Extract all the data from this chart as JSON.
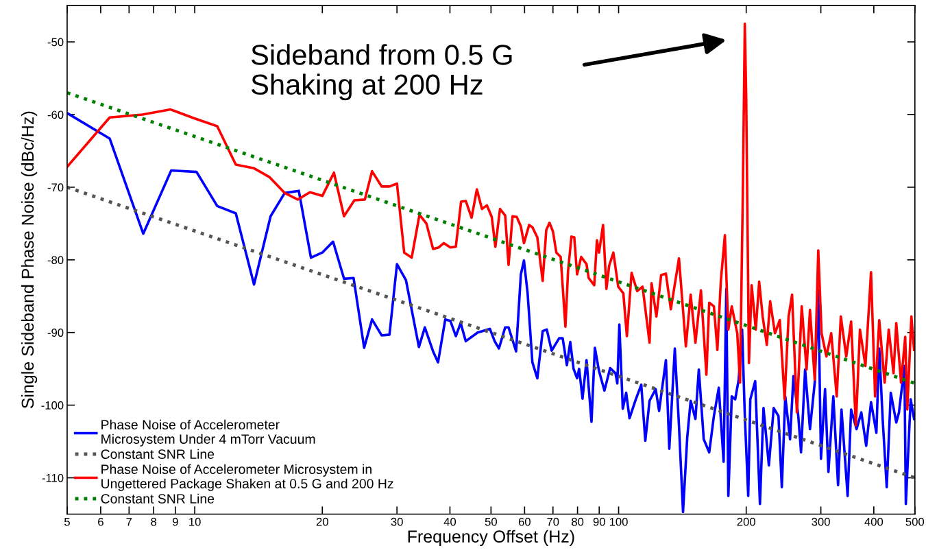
{
  "chart_data": {
    "type": "line",
    "xlabel": "Frequency Offset (Hz)",
    "ylabel": "Single Sideband Phase Noise (dBc/Hz)",
    "log": "x",
    "xlim": [
      5,
      500
    ],
    "xticks": [
      5,
      6,
      7,
      8,
      9,
      10,
      20,
      30,
      40,
      50,
      60,
      70,
      80,
      90,
      100,
      200,
      300,
      400,
      500
    ],
    "ylim": [
      -115,
      -45
    ],
    "yticks": [
      -110,
      -100,
      -90,
      -80,
      -70,
      -60,
      -50
    ],
    "grid": false,
    "legend": "bottom left",
    "marker": "none",
    "annotations": [
      "Sideband from 0.5 G\nShaking at 200 Hz"
    ],
    "series": [
      {
        "name": "Phase Noise of Accelerometer\nMicrosystem Under 4 mTorr Vacuum",
        "color": "#0000ff",
        "line_style": "solid",
        "x": [
          5,
          6.3,
          7.56,
          8.8,
          10.1,
          11.3,
          12.5,
          13.8,
          15.1,
          16.3,
          17.6,
          18.8,
          20.0,
          21.2,
          22.5,
          23.7,
          25.1,
          26.2,
          27.6,
          28.8,
          30.0,
          31.5,
          33.8,
          34.9,
          36.5,
          37.5,
          39.0,
          40.1,
          41.3,
          42.4,
          43.6,
          46.5,
          49.7,
          51.0,
          52.2,
          54.0,
          55.0,
          57.3,
          58.8,
          59.8,
          61.0,
          62.6,
          64.3,
          66.2,
          67.7,
          69.5,
          72.4,
          73.8,
          75.5,
          76.9,
          78.3,
          79.8,
          80.7,
          82.2,
          84.0,
          86.3,
          87.9,
          89.9,
          92.6,
          95.5,
          98.3,
          99.3,
          100.4,
          102.3,
          104.2,
          106.1,
          109.8,
          113.1,
          115.6,
          118.3,
          122.3,
          124.6,
          129.3,
          131.7,
          135.7,
          138.8,
          141.9,
          145.2,
          147.9,
          151.8,
          154.6,
          158.8,
          163.6,
          167.8,
          172.3,
          176.9,
          179.5,
          181.5,
          184.9,
          188.4,
          192.0,
          195.6,
          198.5,
          202.2,
          204.5,
          210.0,
          215.5,
          219.7,
          226.2,
          232.2,
          238.3,
          242.7,
          247.3,
          253.8,
          258.5,
          265.4,
          269.4,
          275.4,
          282.8,
          290.2,
          295.8,
          300.2,
          306.9,
          312.6,
          321.0,
          329.4,
          335.6,
          347.0,
          353.6,
          364.2,
          373.8,
          383.8,
          394.0,
          405.6,
          412.0,
          419.7,
          429.1,
          438.6,
          451.9,
          458.6,
          472.4,
          476.0,
          488.6,
          497.8
        ],
        "values": [
          -59.8,
          -63.3,
          -76.4,
          -67.7,
          -67.9,
          -72.6,
          -73.6,
          -83.4,
          -74.0,
          -70.8,
          -70.5,
          -79.7,
          -79.0,
          -77.5,
          -82.6,
          -82.5,
          -92.1,
          -88.2,
          -90.4,
          -90.3,
          -80.6,
          -82.8,
          -92.0,
          -89.3,
          -92.6,
          -94.1,
          -88.2,
          -88.4,
          -90.5,
          -88.7,
          -91.2,
          -90.0,
          -89.5,
          -91.2,
          -92.2,
          -89.3,
          -89.3,
          -92.6,
          -82.0,
          -80.1,
          -84.6,
          -94.1,
          -96.3,
          -89.8,
          -89.6,
          -92.5,
          -90.8,
          -90.8,
          -94.5,
          -91.3,
          -95.0,
          -96.3,
          -95.0,
          -99.1,
          -93.8,
          -102.3,
          -92.1,
          -95.3,
          -98.0,
          -94.9,
          -95.6,
          -97.0,
          -88.9,
          -100.5,
          -98.3,
          -101.8,
          -99.2,
          -97.2,
          -104.9,
          -99.4,
          -97.8,
          -100.8,
          -93.8,
          -106.0,
          -92.2,
          -102.8,
          -114.7,
          -104.4,
          -99.4,
          -101.9,
          -95.1,
          -104.7,
          -106.5,
          -101.5,
          -97.6,
          -107.8,
          -84.0,
          -112.5,
          -98.8,
          -99.2,
          -96.5,
          -89.6,
          -101.5,
          -112.5,
          -99.2,
          -96.7,
          -113.6,
          -100.4,
          -108.3,
          -100.4,
          -101.5,
          -111.3,
          -98.8,
          -104.7,
          -96.0,
          -101.5,
          -106.5,
          -95.1,
          -103.3,
          -96.9,
          -84.2,
          -107.4,
          -97.8,
          -109.2,
          -98.8,
          -111.0,
          -100.6,
          -112.5,
          -100.6,
          -103.3,
          -101.0,
          -105.6,
          -99.6,
          -103.8,
          -92.2,
          -101.9,
          -111.3,
          -98.3,
          -102.4,
          -101.0,
          -94.6,
          -113.6,
          -99.2,
          -101.9
        ]
      },
      {
        "name": "Constant SNR Line",
        "color": "#555555",
        "line_style": "dotted",
        "x": [
          5,
          500
        ],
        "values": [
          -70,
          -110
        ]
      },
      {
        "name": "Phase Noise of Accelerometer Microsystem in\nUngettered Package Shaken at 0.5 G and 200 Hz",
        "color": "#ff0000",
        "line_style": "solid",
        "x": [
          5,
          6.3,
          7.53,
          8.77,
          9.95,
          11.3,
          12.5,
          13.8,
          15.0,
          16.3,
          17.5,
          18.7,
          20.0,
          21.3,
          22.5,
          23.8,
          25.2,
          26.2,
          27.6,
          28.8,
          30.0,
          31.2,
          32.5,
          33.9,
          35.2,
          36.5,
          37.6,
          38.7,
          40.1,
          41.3,
          42.5,
          43.6,
          45.0,
          46.3,
          47.6,
          48.9,
          50.2,
          51.2,
          52.5,
          54.0,
          55.0,
          56.2,
          57.5,
          58.8,
          59.8,
          61.5,
          62.6,
          64.3,
          66.2,
          67.5,
          68.7,
          70.0,
          71.3,
          73.0,
          74.9,
          76.0,
          77.4,
          78.6,
          79.8,
          81.6,
          84.0,
          85.0,
          87.6,
          88.9,
          89.9,
          91.9,
          93.6,
          95.0,
          97.2,
          99.8,
          102.6,
          104.6,
          107.3,
          110.6,
          113.9,
          118.3,
          119.6,
          122.8,
          126.0,
          129.3,
          132.8,
          138.8,
          144.1,
          147.9,
          151.8,
          156.4,
          161.1,
          163.6,
          167.8,
          171.0,
          174.2,
          178.1,
          181.5,
          184.9,
          190.5,
          193.4,
          196.3,
          198.5,
          200,
          201.5,
          203.0,
          206.0,
          210.7,
          214.6,
          218.7,
          223.7,
          227.8,
          233.8,
          240.0,
          246.4,
          251.8,
          256.6,
          263.4,
          270.4,
          277.6,
          282.8,
          290.2,
          295.8,
          301.2,
          309.2,
          317.4,
          327.0,
          334.4,
          344.4,
          353.6,
          362.8,
          371.0,
          382.2,
          394.0,
          402.8,
          412.0,
          424.2,
          433.8,
          445.2,
          451.9,
          463.8,
          474.4,
          479.8,
          490.6,
          497.8
        ],
        "values": [
          -67.2,
          -60.4,
          -60.0,
          -59.3,
          -60.5,
          -61.6,
          -66.9,
          -67.4,
          -68.6,
          -70.8,
          -71.7,
          -70.7,
          -71.2,
          -68.0,
          -74.0,
          -71.8,
          -71.7,
          -67.8,
          -69.9,
          -69.9,
          -69.5,
          -79.0,
          -79.7,
          -73.8,
          -75.0,
          -78.5,
          -78.3,
          -77.7,
          -78.3,
          -78.2,
          -72.0,
          -71.9,
          -74.2,
          -70.3,
          -73.0,
          -72.5,
          -74.1,
          -78.2,
          -73.0,
          -73.9,
          -80.7,
          -74.0,
          -74.1,
          -75.4,
          -77.7,
          -75.2,
          -75.5,
          -76.9,
          -82.9,
          -75.9,
          -74.9,
          -76.1,
          -79.0,
          -79.6,
          -89.2,
          -81.5,
          -76.8,
          -76.9,
          -82.0,
          -79.6,
          -80.6,
          -82.5,
          -83.5,
          -77.3,
          -79.0,
          -75.2,
          -84.0,
          -80.8,
          -79.0,
          -83.7,
          -84.6,
          -90.5,
          -81.8,
          -84.3,
          -83.7,
          -91.4,
          -83.2,
          -87.8,
          -82.1,
          -81.9,
          -86.8,
          -79.8,
          -91.9,
          -84.8,
          -91.4,
          -84.2,
          -95.8,
          -85.9,
          -86.4,
          -92.4,
          -83.0,
          -76.6,
          -89.6,
          -86.4,
          -90.1,
          -96.9,
          -71.4,
          -47.5,
          -57.7,
          -75.9,
          -94.2,
          -83.5,
          -89.6,
          -83.0,
          -87.8,
          -91.7,
          -85.7,
          -90.1,
          -88.3,
          -99.2,
          -87.8,
          -84.8,
          -101.0,
          -86.4,
          -95.1,
          -86.9,
          -96.5,
          -78.7,
          -90.1,
          -93.3,
          -90.1,
          -98.8,
          -87.8,
          -93.3,
          -88.5,
          -102.8,
          -89.6,
          -94.6,
          -81.7,
          -98.8,
          -88.3,
          -96.9,
          -89.6,
          -95.6,
          -88.7,
          -96.9,
          -90.6,
          -100.6,
          -87.8,
          -92.4
        ]
      },
      {
        "name": "Constant SNR Line",
        "color": "#008000",
        "line_style": "dotted",
        "x": [
          5,
          500
        ],
        "values": [
          -57,
          -97
        ]
      }
    ]
  }
}
